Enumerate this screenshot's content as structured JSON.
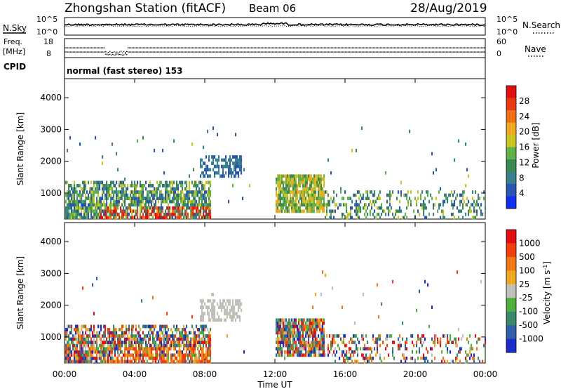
{
  "title": {
    "station": "Zhongshan Station (fitACF)",
    "beam": "Beam 06",
    "date": "28/Aug/2019"
  },
  "side_labels": {
    "nsky": "N.Sky",
    "nsearch": "N.Search",
    "freq_line1": "Freq.",
    "freq_line2": "[MHz]",
    "nave": "Nave",
    "cpid": "CPID"
  },
  "noise_axis": {
    "top": "10^5",
    "bottom": "10^0",
    "right_top": "10^5",
    "right_bottom": "10^0"
  },
  "freq_axis": {
    "top": "18",
    "bottom": "8",
    "right_top": "60",
    "right_bottom": "0"
  },
  "cpid_text": "normal (fast stereo) 153",
  "time_axis": {
    "label": "Time UT",
    "ticks": [
      "00:00",
      "04:00",
      "08:00",
      "12:00",
      "16:00",
      "20:00",
      "00:00"
    ],
    "range_hours": [
      0,
      24
    ]
  },
  "chart_data": [
    {
      "type": "heatmap",
      "name": "power",
      "ylabel": "Slant Range [km]",
      "yticks": [
        "1000",
        "2000",
        "3000",
        "4000"
      ],
      "ylim": [
        180,
        4600
      ],
      "colorbar": {
        "label": "Power [dB]",
        "ticks": [
          "4",
          "8",
          "12",
          "16",
          "20",
          "24",
          "28"
        ],
        "range": [
          0,
          32
        ],
        "colors": [
          "#1030f0",
          "#2a55b0",
          "#3a7f8c",
          "#3b8a55",
          "#62b24a",
          "#c8c422",
          "#f0a820",
          "#f07018",
          "#e83a10",
          "#e01010"
        ]
      },
      "regions": [
        {
          "t0": 0.0,
          "t1": 8.2,
          "r0": 200,
          "r1": 1350,
          "level": "mixed"
        },
        {
          "t0": 7.7,
          "t1": 10.1,
          "r0": 1450,
          "r1": 2150,
          "level": 8
        },
        {
          "t0": 12.0,
          "t1": 14.8,
          "r0": 350,
          "r1": 1600,
          "level": 20
        },
        {
          "t0": 14.8,
          "t1": 24.0,
          "r0": 300,
          "r1": 1100,
          "level": 10
        }
      ]
    },
    {
      "type": "heatmap",
      "name": "velocity",
      "ylabel": "Slant Range [km]",
      "yticks": [
        "1000",
        "2000",
        "3000",
        "4000"
      ],
      "ylim": [
        180,
        4600
      ],
      "colorbar": {
        "label": "Velocity [m s^-1]",
        "ticks": [
          "1000",
          "500",
          "100",
          "25",
          "-25",
          "-100",
          "-500",
          "-1000"
        ],
        "colors": [
          "#1c2cc8",
          "#2f5fa8",
          "#3a8a6a",
          "#4fae3c",
          "#c0c0b8",
          "#f0a820",
          "#f07818",
          "#f04010",
          "#e01010"
        ]
      },
      "regions": [
        {
          "t0": 0.0,
          "t1": 8.2,
          "r0": 200,
          "r1": 1350,
          "level": "mixed"
        },
        {
          "t0": 7.7,
          "t1": 10.1,
          "r0": 1450,
          "r1": 2150,
          "level": 0
        },
        {
          "t0": 12.0,
          "t1": 14.8,
          "r0": 350,
          "r1": 1600,
          "level": "mixed"
        },
        {
          "t0": 14.8,
          "t1": 24.0,
          "r0": 300,
          "r1": 1100,
          "level": "mixed"
        }
      ]
    }
  ]
}
